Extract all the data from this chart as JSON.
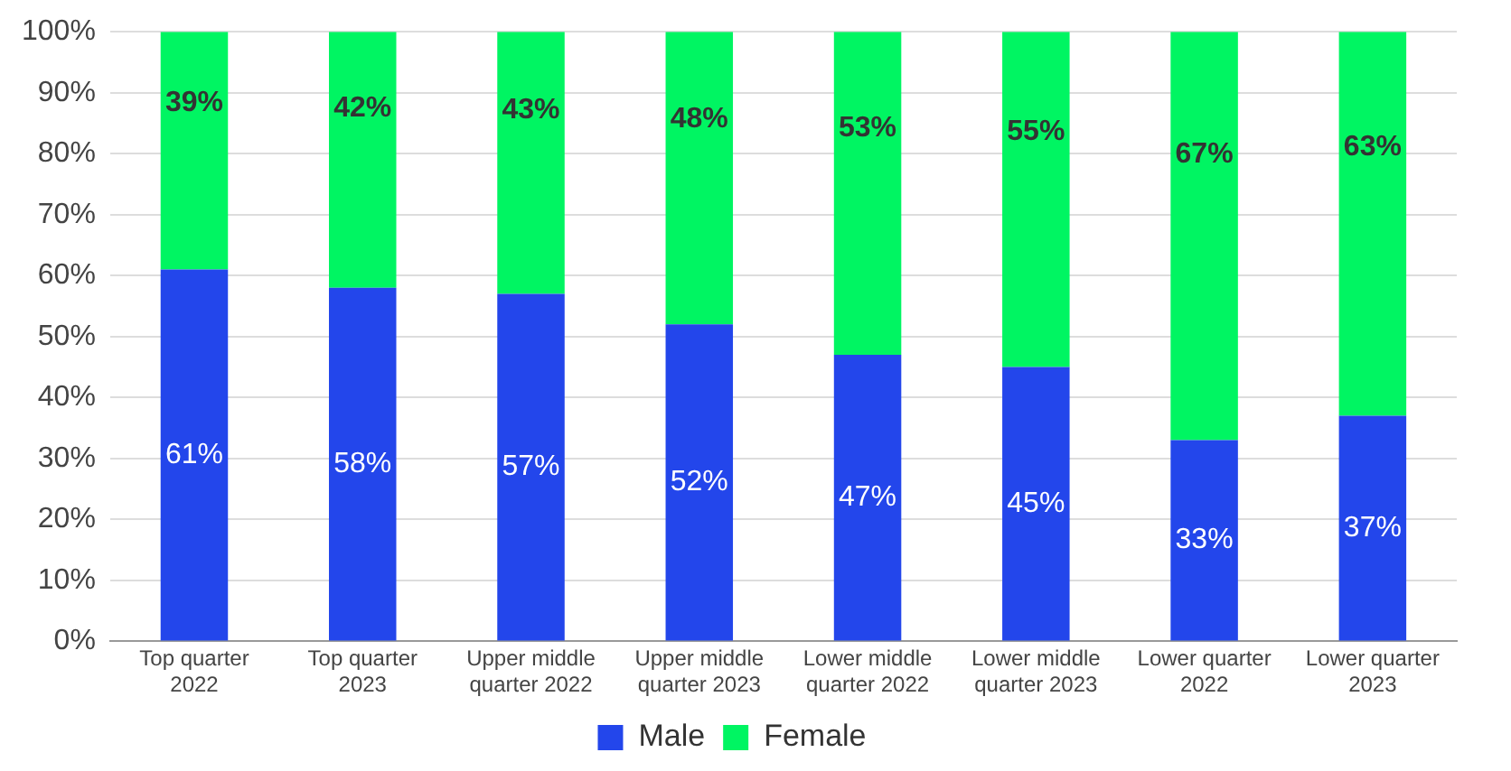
{
  "chart_data": {
    "type": "bar",
    "stacked": true,
    "categories": [
      "Top quarter 2022",
      "Top quarter 2023",
      "Upper middle quarter 2022",
      "Upper middle quarter 2023",
      "Lower middle quarter 2022",
      "Lower middle quarter 2023",
      "Lower quarter 2022",
      "Lower quarter 2023"
    ],
    "series": [
      {
        "name": "Male",
        "color": "#2346eb",
        "values": [
          61,
          58,
          57,
          52,
          47,
          45,
          33,
          37
        ],
        "value_labels": [
          "61%",
          "58%",
          "57%",
          "52%",
          "47%",
          "45%",
          "33%",
          "37%"
        ]
      },
      {
        "name": "Female",
        "color": "#00f562",
        "values": [
          39,
          42,
          43,
          48,
          53,
          55,
          67,
          63
        ],
        "value_labels": [
          "39%",
          "42%",
          "43%",
          "48%",
          "53%",
          "55%",
          "67%",
          "63%"
        ]
      }
    ],
    "ylim": [
      0,
      100
    ],
    "yticks": [
      {
        "value": 0,
        "label": "0%"
      },
      {
        "value": 10,
        "label": "10%"
      },
      {
        "value": 20,
        "label": "20%"
      },
      {
        "value": 30,
        "label": "30%"
      },
      {
        "value": 40,
        "label": "40%"
      },
      {
        "value": 50,
        "label": "50%"
      },
      {
        "value": 60,
        "label": "60%"
      },
      {
        "value": 70,
        "label": "70%"
      },
      {
        "value": 80,
        "label": "80%"
      },
      {
        "value": 90,
        "label": "90%"
      },
      {
        "value": 100,
        "label": "100%"
      }
    ],
    "grid": "y",
    "legend": "bottom"
  }
}
